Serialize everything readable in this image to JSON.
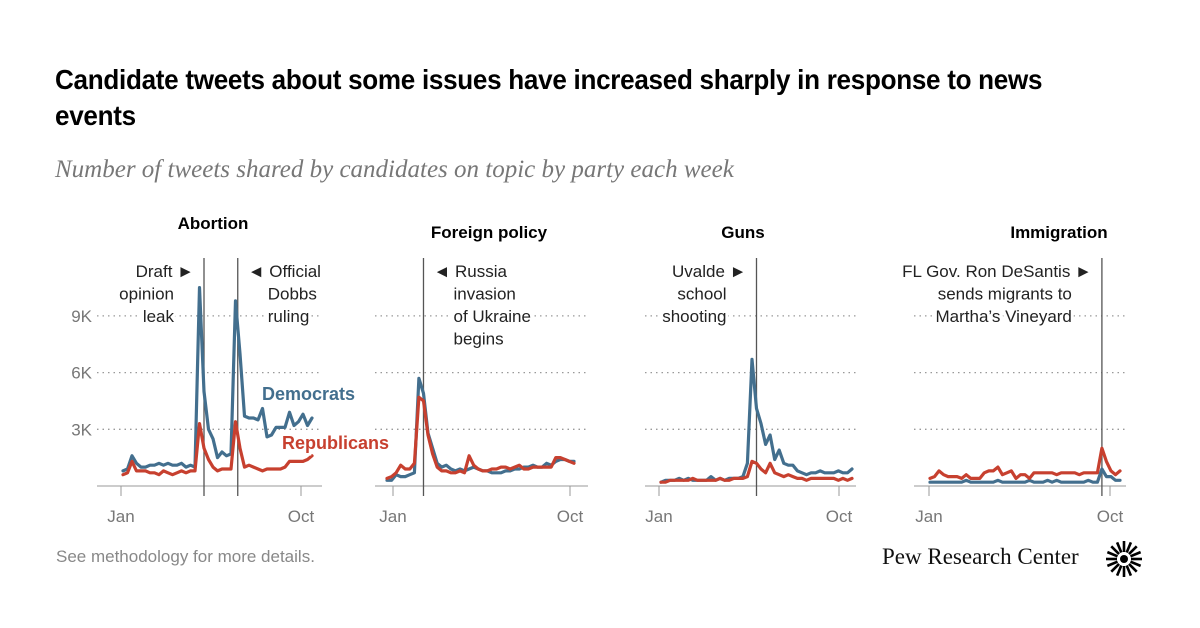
{
  "header": {
    "title": "Candidate tweets about some issues have increased sharply in response to news events",
    "subtitle": "Number of tweets shared by candidates on topic by party each week"
  },
  "footer": {
    "note": "See methodology for more details.",
    "brand": "Pew Research Center",
    "logo_icon": "pew-sunburst-logo"
  },
  "colors": {
    "democrats": "#436f8e",
    "republicans": "#c7402f",
    "gridline": "#999999",
    "event_line": "#555555"
  },
  "chart_data": [
    {
      "type": "line",
      "title": "Abortion",
      "xlabel": "",
      "ylabel": "",
      "x_ticks": [
        "Jan",
        "Oct"
      ],
      "y_ticks": [
        "3K",
        "6K",
        "9K"
      ],
      "y_tick_values": [
        3000,
        6000,
        9000
      ],
      "ylim": [
        0,
        10800
      ],
      "grid": "horizontal-dotted",
      "legend": [
        "Democrats",
        "Republicans"
      ],
      "legend_placement": "inline-right",
      "weeks": 42,
      "events": [
        {
          "week": 18,
          "label": [
            "Draft ►",
            "opinion",
            "leak"
          ],
          "side": "left"
        },
        {
          "week": 25.5,
          "label": [
            "◄ Official",
            "Dobbs",
            "ruling"
          ],
          "side": "right"
        }
      ],
      "series": [
        {
          "name": "Democrats",
          "values": [
            800,
            900,
            1600,
            1200,
            1000,
            1000,
            1100,
            1100,
            1200,
            1100,
            1200,
            1100,
            1100,
            1200,
            1000,
            1100,
            1000,
            10500,
            5000,
            3000,
            2500,
            1500,
            1800,
            1600,
            1700,
            9800,
            7000,
            3700,
            3600,
            3600,
            3500,
            4100,
            2600,
            2700,
            3100,
            3100,
            3100,
            3900,
            3200,
            3400,
            3800,
            3200,
            3600
          ]
        },
        {
          "name": "Republicans",
          "values": [
            600,
            700,
            1300,
            800,
            800,
            800,
            700,
            700,
            600,
            800,
            700,
            600,
            700,
            800,
            700,
            800,
            800,
            3300,
            2000,
            1400,
            1000,
            800,
            900,
            900,
            900,
            3400,
            2000,
            1000,
            1100,
            1000,
            900,
            800,
            900,
            900,
            900,
            900,
            1000,
            1300,
            1300,
            1300,
            1300,
            1400,
            1600
          ]
        }
      ]
    },
    {
      "type": "line",
      "title": "Foreign policy",
      "x_ticks": [
        "Jan",
        "Oct"
      ],
      "ylim": [
        0,
        10800
      ],
      "y_tick_values": [
        3000,
        6000,
        9000
      ],
      "grid": "horizontal-dotted",
      "weeks": 42,
      "events": [
        {
          "week": 8,
          "label": [
            "◄ Russia",
            "invasion",
            "of Ukraine",
            "begins"
          ],
          "side": "right"
        }
      ],
      "series": [
        {
          "name": "Democrats",
          "values": [
            300,
            300,
            600,
            500,
            500,
            600,
            700,
            5700,
            4900,
            2800,
            2000,
            1200,
            1000,
            1100,
            900,
            800,
            900,
            800,
            900,
            1000,
            900,
            800,
            800,
            700,
            700,
            700,
            800,
            800,
            900,
            900,
            1000,
            1000,
            1100,
            1000,
            1000,
            1200,
            1100,
            1300,
            1400,
            1400,
            1300,
            1300
          ]
        },
        {
          "name": "Republicans",
          "values": [
            400,
            500,
            700,
            1100,
            900,
            900,
            1200,
            4700,
            4500,
            2700,
            1700,
            1000,
            800,
            800,
            700,
            700,
            800,
            700,
            1600,
            1100,
            900,
            800,
            800,
            900,
            900,
            1000,
            1000,
            900,
            1000,
            1100,
            900,
            900,
            1000,
            1000,
            1000,
            1000,
            1000,
            1500,
            1500,
            1400,
            1300,
            1200
          ]
        }
      ]
    },
    {
      "type": "line",
      "title": "Guns",
      "x_ticks": [
        "Jan",
        "Oct"
      ],
      "ylim": [
        0,
        10800
      ],
      "y_tick_values": [
        3000,
        6000,
        9000
      ],
      "grid": "horizontal-dotted",
      "weeks": 42,
      "events": [
        {
          "week": 21,
          "label": [
            "Uvalde ►",
            "school",
            "shooting"
          ],
          "side": "left"
        }
      ],
      "series": [
        {
          "name": "Democrats",
          "values": [
            200,
            300,
            300,
            300,
            400,
            300,
            400,
            300,
            300,
            300,
            300,
            500,
            300,
            400,
            300,
            400,
            400,
            400,
            500,
            1200,
            6700,
            4100,
            3300,
            2200,
            2700,
            1400,
            1900,
            1200,
            1100,
            1100,
            800,
            700,
            600,
            700,
            700,
            800,
            700,
            700,
            700,
            800,
            700,
            700,
            900
          ]
        },
        {
          "name": "Republicans",
          "values": [
            200,
            200,
            300,
            300,
            300,
            300,
            300,
            400,
            300,
            300,
            300,
            300,
            300,
            400,
            300,
            300,
            400,
            400,
            400,
            500,
            1300,
            1200,
            900,
            700,
            1200,
            700,
            600,
            500,
            600,
            500,
            400,
            400,
            300,
            400,
            400,
            400,
            400,
            400,
            400,
            300,
            400,
            300,
            400
          ]
        }
      ]
    },
    {
      "type": "line",
      "title": "Immigration",
      "x_ticks": [
        "Jan",
        "Oct"
      ],
      "ylim": [
        0,
        10800
      ],
      "y_tick_values": [
        3000,
        6000,
        9000
      ],
      "grid": "horizontal-dotted",
      "weeks": 42,
      "events": [
        {
          "week": 38,
          "label": [
            "FL Gov. Ron DeSantis ►",
            "sends migrants to",
            "Martha’s Vineyard"
          ],
          "side": "left"
        }
      ],
      "series": [
        {
          "name": "Democrats",
          "values": [
            200,
            200,
            200,
            200,
            200,
            200,
            200,
            200,
            300,
            200,
            200,
            200,
            200,
            200,
            200,
            300,
            200,
            200,
            200,
            200,
            200,
            200,
            300,
            200,
            200,
            200,
            300,
            200,
            300,
            200,
            200,
            200,
            200,
            200,
            200,
            300,
            200,
            200,
            900,
            500,
            500,
            300,
            300
          ]
        },
        {
          "name": "Republicans",
          "values": [
            400,
            500,
            800,
            600,
            500,
            500,
            500,
            400,
            600,
            400,
            400,
            400,
            700,
            800,
            800,
            1000,
            600,
            700,
            800,
            400,
            600,
            600,
            400,
            700,
            700,
            700,
            700,
            700,
            600,
            700,
            700,
            700,
            700,
            600,
            700,
            700,
            700,
            700,
            2000,
            1300,
            800,
            600,
            800
          ]
        }
      ]
    }
  ]
}
